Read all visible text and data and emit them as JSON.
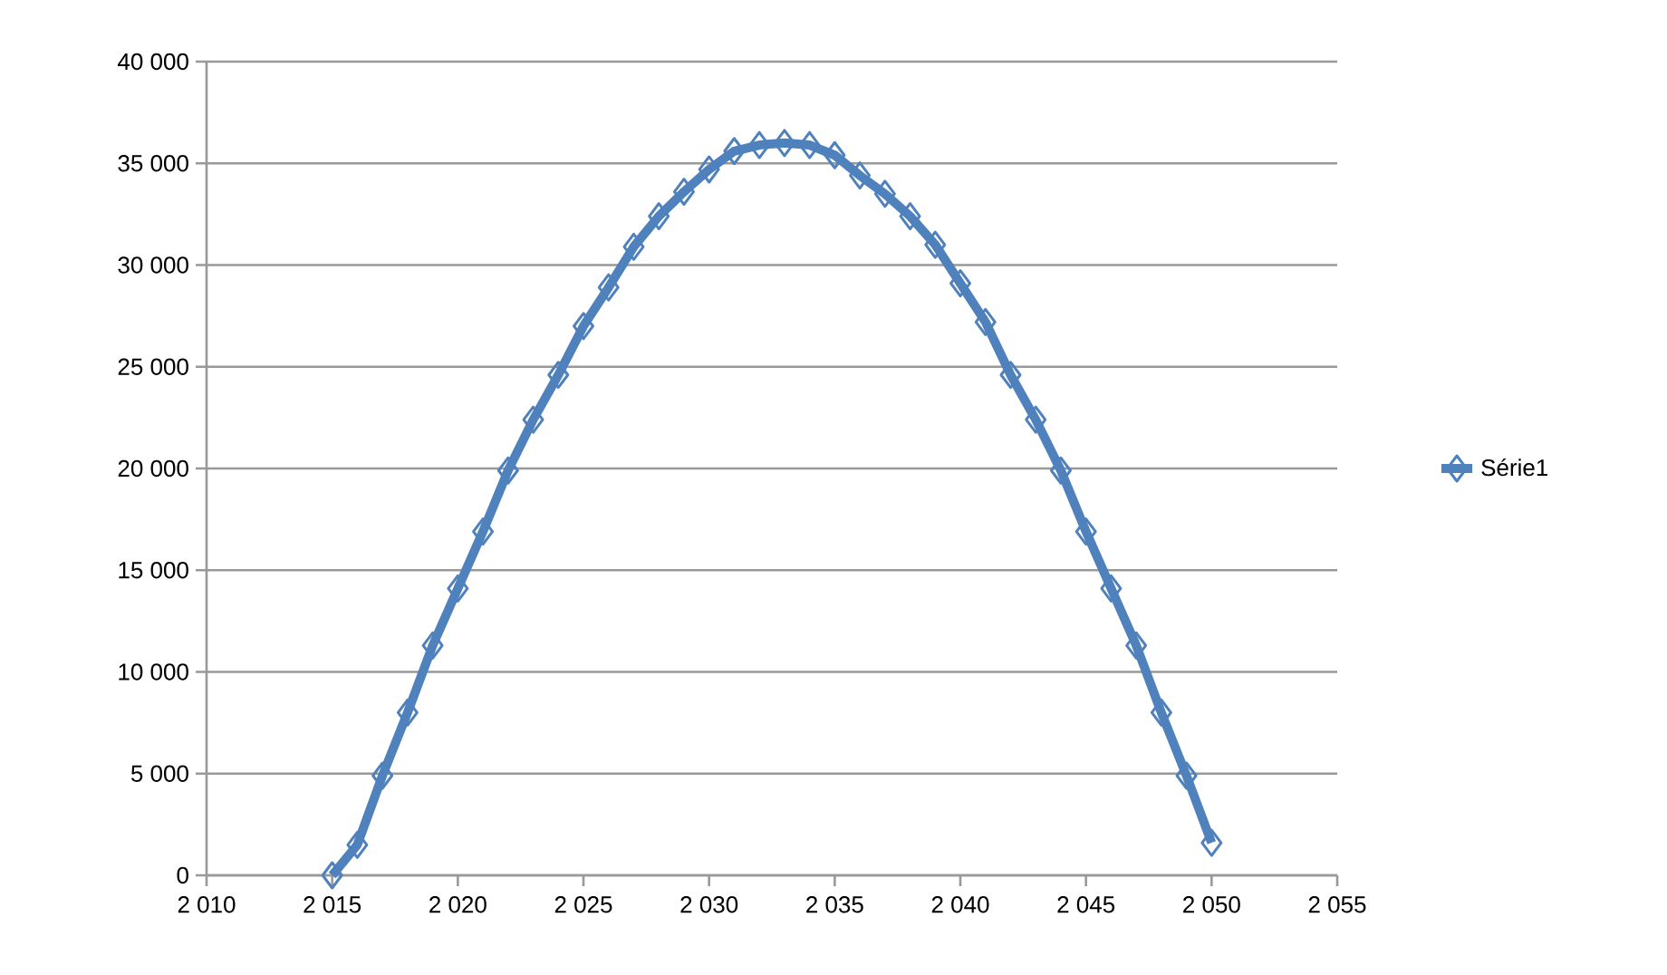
{
  "chart_data": {
    "type": "line",
    "x": [
      2015,
      2016,
      2017,
      2018,
      2019,
      2020,
      2021,
      2022,
      2023,
      2024,
      2025,
      2026,
      2027,
      2028,
      2029,
      2030,
      2031,
      2032,
      2033,
      2034,
      2035,
      2036,
      2037,
      2038,
      2039,
      2040,
      2041,
      2042,
      2043,
      2044,
      2045,
      2046,
      2047,
      2048,
      2049,
      2050
    ],
    "series": [
      {
        "name": "Série1",
        "color": "#4f81bd",
        "values": [
          0,
          1500,
          4900,
          8000,
          11300,
          14100,
          16900,
          19900,
          22400,
          24600,
          27000,
          28900,
          30900,
          32400,
          33600,
          34700,
          35600,
          35900,
          36000,
          35900,
          35400,
          34400,
          33500,
          32400,
          31000,
          29100,
          27200,
          24600,
          22400,
          19900,
          16900,
          14100,
          11300,
          8000,
          4900,
          1600
        ]
      }
    ],
    "xlim": [
      2010,
      2055
    ],
    "xticks": [
      {
        "value": 2010,
        "label": "2 010"
      },
      {
        "value": 2015,
        "label": "2 015"
      },
      {
        "value": 2020,
        "label": "2 020"
      },
      {
        "value": 2025,
        "label": "2 025"
      },
      {
        "value": 2030,
        "label": "2 030"
      },
      {
        "value": 2035,
        "label": "2 035"
      },
      {
        "value": 2040,
        "label": "2 040"
      },
      {
        "value": 2045,
        "label": "2 045"
      },
      {
        "value": 2050,
        "label": "2 050"
      },
      {
        "value": 2055,
        "label": "2 055"
      }
    ],
    "ylim": [
      0,
      40000
    ],
    "yticks": [
      0,
      {
        "value": 5000,
        "label": "5 000"
      },
      {
        "value": 10000,
        "label": "10 000"
      },
      {
        "value": 15000,
        "label": "15 000"
      },
      {
        "value": 20000,
        "label": "20 000"
      },
      {
        "value": 25000,
        "label": "25 000"
      },
      {
        "value": 30000,
        "label": "30 000"
      },
      {
        "value": 35000,
        "label": "35 000"
      },
      {
        "value": 40000,
        "label": "40 000"
      }
    ],
    "grid": "y",
    "legend": "right",
    "marker": "diamond",
    "line_style": "solid"
  }
}
